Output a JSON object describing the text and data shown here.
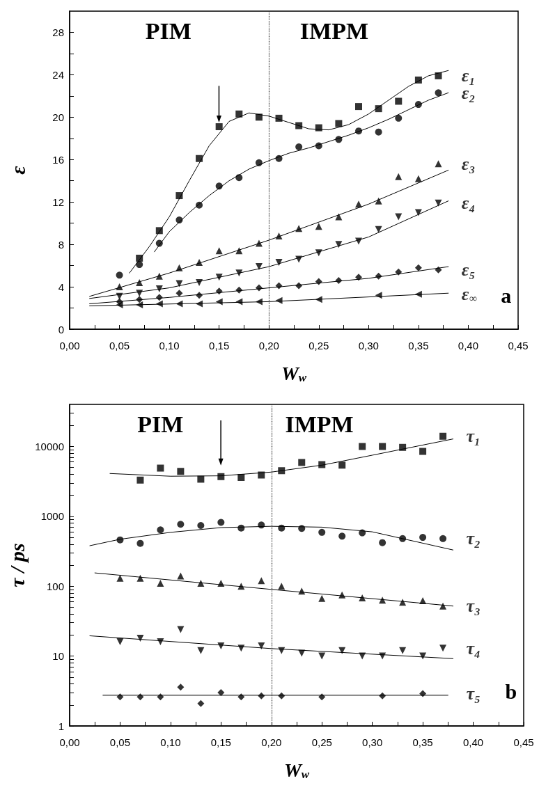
{
  "chart_data": [
    {
      "type": "scatter",
      "xlabel": "W$_{w}$",
      "ylabel": "ε",
      "annotations": [
        "PIM",
        "IMPM",
        "a"
      ],
      "xlim": [
        0,
        0.45
      ],
      "xticks": [
        {
          "value": 0,
          "label": "0,00"
        },
        {
          "value": 0.025,
          "label": null
        },
        {
          "value": 0.05,
          "label": "0,05"
        },
        {
          "value": 0.075,
          "label": null
        },
        {
          "value": 0.1,
          "label": "0,10"
        },
        {
          "value": 0.125,
          "label": null
        },
        {
          "value": 0.15,
          "label": "0,15"
        },
        {
          "value": 0.175,
          "label": null
        },
        {
          "value": 0.2,
          "label": "0,20"
        },
        {
          "value": 0.225,
          "label": null
        },
        {
          "value": 0.25,
          "label": "0,25"
        },
        {
          "value": 0.275,
          "label": null
        },
        {
          "value": 0.3,
          "label": "0,30"
        },
        {
          "value": 0.325,
          "label": null
        },
        {
          "value": 0.35,
          "label": "0,35"
        },
        {
          "value": 0.375,
          "label": null
        },
        {
          "value": 0.4,
          "label": "0,40"
        },
        {
          "value": 0.425,
          "label": null
        },
        {
          "value": 0.45,
          "label": "0,45"
        }
      ],
      "ylim": [
        0,
        30
      ],
      "yticks": [
        0,
        {
          "value": 2,
          "label": null
        },
        4,
        {
          "value": 6,
          "label": null
        },
        8,
        {
          "value": 10,
          "label": null
        },
        12,
        {
          "value": 14,
          "label": null
        },
        16,
        {
          "value": 18,
          "label": null
        },
        20,
        {
          "value": 22,
          "label": null
        },
        24,
        {
          "value": 26,
          "label": null
        },
        28
      ],
      "ref_lines": [
        {
          "axis": "x",
          "value": 0.2,
          "label": null,
          "color": "#333333",
          "line_style": "dotted"
        }
      ],
      "series": [
        {
          "type": "scatter",
          "name": "ε₁",
          "color": "#000000",
          "marker": "square",
          "x": [
            0.07,
            0.09,
            0.11,
            0.13,
            0.15,
            0.17,
            0.19,
            0.21,
            0.23,
            0.25,
            0.27,
            0.29,
            0.31,
            0.33,
            0.35,
            0.37
          ],
          "values": [
            6.7,
            9.3,
            12.6,
            16.1,
            19.1,
            20.3,
            20.0,
            19.9,
            19.2,
            19.0,
            19.4,
            21.0,
            20.8,
            21.5,
            23.5,
            23.9
          ]
        },
        {
          "type": "scatter",
          "name": "ε₂",
          "color": "#000000",
          "marker": "circle",
          "x": [
            0.05,
            0.07,
            0.09,
            0.11,
            0.13,
            0.15,
            0.17,
            0.19,
            0.21,
            0.23,
            0.25,
            0.27,
            0.29,
            0.31,
            0.33,
            0.35,
            0.37
          ],
          "values": [
            5.1,
            6.1,
            8.1,
            10.3,
            11.7,
            13.5,
            14.3,
            15.7,
            16.1,
            17.2,
            17.3,
            17.9,
            18.7,
            18.6,
            19.9,
            21.2,
            22.3
          ]
        },
        {
          "type": "scatter",
          "name": "ε₃",
          "color": "#000000",
          "marker": "triangle",
          "x": [
            0.05,
            0.07,
            0.09,
            0.11,
            0.13,
            0.15,
            0.17,
            0.19,
            0.21,
            0.23,
            0.25,
            0.27,
            0.29,
            0.31,
            0.33,
            0.35,
            0.37
          ],
          "values": [
            4.0,
            4.4,
            5.0,
            5.8,
            6.3,
            7.4,
            7.4,
            8.1,
            8.8,
            9.5,
            9.7,
            10.6,
            11.8,
            12.1,
            14.4,
            14.2,
            15.6
          ]
        },
        {
          "type": "scatter",
          "name": "ε₄",
          "color": "#000000",
          "marker": "triangle-down",
          "x": [
            0.05,
            0.07,
            0.09,
            0.11,
            0.13,
            0.15,
            0.17,
            0.19,
            0.21,
            0.23,
            0.25,
            0.27,
            0.29,
            0.31,
            0.33,
            0.35,
            0.37
          ],
          "values": [
            3.1,
            3.4,
            3.8,
            4.3,
            4.4,
            4.9,
            5.3,
            5.9,
            6.3,
            6.6,
            7.2,
            8.0,
            8.3,
            9.4,
            10.6,
            11.0,
            11.9
          ]
        },
        {
          "type": "scatter",
          "name": "ε₅",
          "color": "#000000",
          "marker": "diamond",
          "x": [
            0.05,
            0.07,
            0.09,
            0.11,
            0.13,
            0.15,
            0.17,
            0.19,
            0.21,
            0.23,
            0.25,
            0.27,
            0.29,
            0.31,
            0.33,
            0.35,
            0.37
          ],
          "values": [
            2.6,
            2.8,
            3.0,
            3.4,
            3.2,
            3.6,
            3.7,
            3.9,
            4.1,
            4.1,
            4.5,
            4.6,
            4.9,
            5.0,
            5.4,
            5.8,
            5.6
          ]
        },
        {
          "type": "scatter",
          "name": "ε$_{∞}$",
          "color": "#000000",
          "marker": "triangle-left",
          "x": [
            0.05,
            0.07,
            0.09,
            0.11,
            0.13,
            0.15,
            0.17,
            0.19,
            0.21,
            0.25,
            0.31,
            0.35
          ],
          "values": [
            2.3,
            2.3,
            2.4,
            2.4,
            2.4,
            2.6,
            2.6,
            2.6,
            2.7,
            2.8,
            3.2,
            3.3
          ]
        },
        {
          "type": "line",
          "color": "#000000",
          "marker": "none",
          "line_style": "solid",
          "x": [
            0.06,
            0.08,
            0.1,
            0.12,
            0.14,
            0.16,
            0.18,
            0.2,
            0.22,
            0.24,
            0.26,
            0.28,
            0.3,
            0.32,
            0.34,
            0.36,
            0.38
          ],
          "values": [
            5.3,
            7.8,
            10.6,
            14.0,
            17.3,
            19.6,
            20.4,
            20.1,
            19.5,
            18.9,
            18.8,
            19.3,
            20.3,
            21.6,
            22.9,
            23.9,
            24.4
          ]
        },
        {
          "type": "line",
          "color": "#000000",
          "marker": "none",
          "line_style": "solid",
          "x": [
            0.085,
            0.1,
            0.12,
            0.14,
            0.16,
            0.18,
            0.2,
            0.22,
            0.24,
            0.26,
            0.28,
            0.3,
            0.32,
            0.34,
            0.36,
            0.38
          ],
          "values": [
            7.3,
            9.2,
            11.0,
            12.6,
            14.0,
            15.1,
            15.9,
            16.6,
            17.1,
            17.7,
            18.3,
            19.0,
            19.8,
            20.7,
            21.6,
            22.3
          ]
        },
        {
          "type": "line",
          "color": "#000000",
          "marker": "none",
          "line_style": "solid",
          "x": [
            0.02,
            0.1,
            0.2,
            0.3,
            0.38
          ],
          "values": [
            3.1,
            5.3,
            8.4,
            11.8,
            15.0
          ]
        },
        {
          "type": "line",
          "color": "#000000",
          "marker": "none",
          "line_style": "solid",
          "x": [
            0.02,
            0.1,
            0.2,
            0.3,
            0.38
          ],
          "values": [
            2.9,
            3.9,
            5.9,
            8.7,
            12.1
          ]
        },
        {
          "type": "line",
          "color": "#000000",
          "marker": "none",
          "line_style": "solid",
          "x": [
            0.02,
            0.1,
            0.2,
            0.3,
            0.38
          ],
          "values": [
            2.4,
            3.0,
            3.9,
            4.8,
            5.9
          ]
        },
        {
          "type": "line",
          "color": "#000000",
          "marker": "none",
          "line_style": "solid",
          "x": [
            0.02,
            0.2,
            0.38
          ],
          "values": [
            2.2,
            2.6,
            3.4
          ]
        }
      ]
    },
    {
      "type": "scatter",
      "xlabel": "W$_{w}$",
      "ylabel": "τ / ps",
      "annotations": [
        "PIM",
        "IMPM",
        "b"
      ],
      "log": "y",
      "xlim": [
        0,
        0.45
      ],
      "xticks": [
        {
          "value": 0,
          "label": "0,00"
        },
        {
          "value": 0.025,
          "label": null
        },
        {
          "value": 0.05,
          "label": "0,05"
        },
        {
          "value": 0.075,
          "label": null
        },
        {
          "value": 0.1,
          "label": "0,10"
        },
        {
          "value": 0.125,
          "label": null
        },
        {
          "value": 0.15,
          "label": "0,15"
        },
        {
          "value": 0.175,
          "label": null
        },
        {
          "value": 0.2,
          "label": "0,20"
        },
        {
          "value": 0.225,
          "label": null
        },
        {
          "value": 0.25,
          "label": "0,25"
        },
        {
          "value": 0.275,
          "label": null
        },
        {
          "value": 0.3,
          "label": "0,30"
        },
        {
          "value": 0.325,
          "label": null
        },
        {
          "value": 0.35,
          "label": "0,35"
        },
        {
          "value": 0.375,
          "label": null
        },
        {
          "value": 0.4,
          "label": "0,40"
        },
        {
          "value": 0.425,
          "label": null
        },
        {
          "value": 0.45,
          "label": "0,45"
        }
      ],
      "ylim": [
        1,
        40000
      ],
      "yticks": [
        1,
        {
          "value": 2,
          "label": null
        },
        {
          "value": 3,
          "label": null
        },
        {
          "value": 4,
          "label": null
        },
        {
          "value": 5,
          "label": null
        },
        {
          "value": 6,
          "label": null
        },
        {
          "value": 7,
          "label": null
        },
        {
          "value": 8,
          "label": null
        },
        {
          "value": 9,
          "label": null
        },
        10,
        {
          "value": 20,
          "label": null
        },
        {
          "value": 30,
          "label": null
        },
        {
          "value": 40,
          "label": null
        },
        {
          "value": 50,
          "label": null
        },
        {
          "value": 60,
          "label": null
        },
        {
          "value": 70,
          "label": null
        },
        {
          "value": 80,
          "label": null
        },
        {
          "value": 90,
          "label": null
        },
        100,
        {
          "value": 200,
          "label": null
        },
        {
          "value": 300,
          "label": null
        },
        {
          "value": 400,
          "label": null
        },
        {
          "value": 500,
          "label": null
        },
        {
          "value": 600,
          "label": null
        },
        {
          "value": 700,
          "label": null
        },
        {
          "value": 800,
          "label": null
        },
        {
          "value": 900,
          "label": null
        },
        1000,
        {
          "value": 2000,
          "label": null
        },
        {
          "value": 3000,
          "label": null
        },
        {
          "value": 4000,
          "label": null
        },
        {
          "value": 5000,
          "label": null
        },
        {
          "value": 6000,
          "label": null
        },
        {
          "value": 7000,
          "label": null
        },
        {
          "value": 8000,
          "label": null
        },
        {
          "value": 9000,
          "label": null
        },
        10000,
        {
          "value": 20000,
          "label": null
        },
        {
          "value": 30000,
          "label": null
        }
      ],
      "ref_lines": [
        {
          "axis": "x",
          "value": 0.2,
          "label": null,
          "color": "#333333",
          "line_style": "dotted"
        }
      ],
      "series": [
        {
          "type": "scatter",
          "name": "τ₁",
          "color": "#000000",
          "marker": "square",
          "x": [
            0.07,
            0.09,
            0.11,
            0.13,
            0.15,
            0.17,
            0.19,
            0.21,
            0.23,
            0.25,
            0.27,
            0.29,
            0.31,
            0.33,
            0.35,
            0.37
          ],
          "values": [
            3300,
            4900,
            4400,
            3400,
            3700,
            3600,
            3900,
            4500,
            5900,
            5500,
            5400,
            10000,
            10000,
            9700,
            8500,
            14000
          ]
        },
        {
          "type": "scatter",
          "name": "τ₂",
          "color": "#000000",
          "marker": "circle",
          "x": [
            0.05,
            0.07,
            0.09,
            0.11,
            0.13,
            0.15,
            0.17,
            0.19,
            0.21,
            0.23,
            0.25,
            0.27,
            0.29,
            0.31,
            0.33,
            0.35,
            0.37
          ],
          "values": [
            460,
            410,
            640,
            770,
            740,
            820,
            680,
            750,
            680,
            670,
            590,
            520,
            580,
            420,
            480,
            500,
            480
          ]
        },
        {
          "type": "scatter",
          "name": "τ₃",
          "color": "#000000",
          "marker": "triangle",
          "x": [
            0.05,
            0.07,
            0.09,
            0.11,
            0.13,
            0.15,
            0.17,
            0.19,
            0.21,
            0.23,
            0.25,
            0.27,
            0.29,
            0.31,
            0.33,
            0.35,
            0.37
          ],
          "values": [
            130,
            130,
            110,
            140,
            110,
            110,
            100,
            120,
            100,
            85,
            67,
            75,
            68,
            63,
            59,
            62,
            52
          ]
        },
        {
          "type": "scatter",
          "name": "τ₄",
          "color": "#000000",
          "marker": "triangle-down",
          "x": [
            0.05,
            0.07,
            0.09,
            0.11,
            0.13,
            0.15,
            0.17,
            0.19,
            0.21,
            0.23,
            0.25,
            0.27,
            0.29,
            0.31,
            0.33,
            0.35,
            0.37
          ],
          "values": [
            16,
            18,
            16,
            24,
            12,
            14,
            13,
            14,
            12,
            11,
            10,
            12,
            10,
            10,
            12,
            10,
            13
          ]
        },
        {
          "type": "scatter",
          "name": "τ₅",
          "color": "#000000",
          "marker": "diamond",
          "x": [
            0.05,
            0.07,
            0.09,
            0.11,
            0.13,
            0.15,
            0.17,
            0.19,
            0.21,
            0.25,
            0.31,
            0.35
          ],
          "values": [
            2.6,
            2.6,
            2.6,
            3.6,
            2.1,
            3.0,
            2.6,
            2.7,
            2.7,
            2.6,
            2.7,
            2.9
          ]
        },
        {
          "type": "line",
          "color": "#000000",
          "marker": "none",
          "line_style": "solid",
          "x": [
            0.04,
            0.1,
            0.15,
            0.2,
            0.25,
            0.3,
            0.38
          ],
          "values": [
            4100,
            3750,
            3800,
            4300,
            5400,
            7500,
            12800
          ]
        },
        {
          "type": "line",
          "color": "#000000",
          "marker": "none",
          "line_style": "solid",
          "x": [
            0.02,
            0.05,
            0.1,
            0.15,
            0.2,
            0.25,
            0.3,
            0.38
          ],
          "values": [
            380,
            470,
            590,
            690,
            720,
            700,
            600,
            330
          ]
        },
        {
          "type": "line",
          "color": "#000000",
          "marker": "none",
          "line_style": "solid",
          "x": [
            0.025,
            0.2,
            0.38
          ],
          "values": [
            155,
            90,
            52
          ]
        },
        {
          "type": "line",
          "color": "#000000",
          "marker": "none",
          "line_style": "solid",
          "x": [
            0.02,
            0.2,
            0.38
          ],
          "values": [
            19.5,
            12.8,
            9.2
          ]
        },
        {
          "type": "line",
          "color": "#000000",
          "marker": "none",
          "line_style": "solid",
          "x": [
            0.033,
            0.375
          ],
          "values": [
            2.75,
            2.75
          ]
        }
      ]
    }
  ]
}
